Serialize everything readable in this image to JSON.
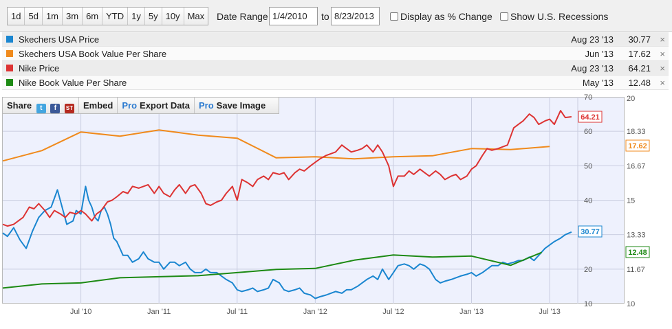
{
  "toolbar": {
    "ranges": [
      "1d",
      "5d",
      "1m",
      "3m",
      "6m",
      "YTD",
      "1y",
      "5y",
      "10y",
      "Max"
    ],
    "date_range_label": "Date Range:",
    "start_date": "1/4/2010",
    "to_label": "to",
    "end_date": "8/23/2013",
    "pct_change_label": "Display as % Change",
    "recessions_label": "Show U.S. Recessions"
  },
  "legend": [
    {
      "name": "Skechers USA Price",
      "date": "Aug 23 '13",
      "value": "30.77",
      "color": "#1a86d0"
    },
    {
      "name": "Skechers USA Book Value Per Share",
      "date": "Jun '13",
      "value": "17.62",
      "color": "#f08a1c"
    },
    {
      "name": "Nike Price",
      "date": "Aug 23 '13",
      "value": "64.21",
      "color": "#dd3333"
    },
    {
      "name": "Nike Book Value Per Share",
      "date": "May '13",
      "value": "12.48",
      "color": "#1d8a14"
    }
  ],
  "remove_glyph": "×",
  "share_bar": {
    "share": "Share",
    "twitter": "t",
    "facebook": "f",
    "stocktwits": "ST",
    "embed": "Embed",
    "pro": "Pro",
    "export": "Export Data",
    "save": "Save Image"
  },
  "chart_data": {
    "type": "line",
    "x_ticks": [
      "Jul '10",
      "Jan '11",
      "Jul '11",
      "Jan '12",
      "Jul '12",
      "Jan '13",
      "Jul '13"
    ],
    "y_left": {
      "range": [
        10,
        70
      ],
      "ticks": [
        "70",
        "60",
        "50",
        "40",
        "30",
        "20",
        "10"
      ]
    },
    "y_right": {
      "range": [
        10,
        20
      ],
      "ticks": [
        "20",
        "18.33",
        "16.67",
        "15",
        "13.33",
        "11.67",
        "10"
      ]
    },
    "grid": true,
    "series": [
      {
        "name": "Skechers USA Price",
        "axis": "left",
        "color": "#1a86d0",
        "end_label": "30.77",
        "points": [
          [
            2010.0,
            30.5
          ],
          [
            2010.03,
            29.5
          ],
          [
            2010.07,
            32
          ],
          [
            2010.11,
            28.5
          ],
          [
            2010.15,
            26
          ],
          [
            2010.19,
            31
          ],
          [
            2010.23,
            35
          ],
          [
            2010.27,
            37
          ],
          [
            2010.31,
            38
          ],
          [
            2010.35,
            43
          ],
          [
            2010.38,
            38
          ],
          [
            2010.41,
            33
          ],
          [
            2010.45,
            34
          ],
          [
            2010.47,
            37
          ],
          [
            2010.5,
            36
          ],
          [
            2010.53,
            44
          ],
          [
            2010.55,
            40
          ],
          [
            2010.57,
            38
          ],
          [
            2010.59,
            35
          ],
          [
            2010.61,
            34
          ],
          [
            2010.63,
            37
          ],
          [
            2010.65,
            38
          ],
          [
            2010.67,
            36
          ],
          [
            2010.69,
            33
          ],
          [
            2010.71,
            29
          ],
          [
            2010.73,
            28
          ],
          [
            2010.75,
            26
          ],
          [
            2010.77,
            24
          ],
          [
            2010.8,
            24
          ],
          [
            2010.83,
            22
          ],
          [
            2010.87,
            23
          ],
          [
            2010.9,
            25
          ],
          [
            2010.93,
            23
          ],
          [
            2010.97,
            22
          ],
          [
            2011.0,
            22
          ],
          [
            2011.03,
            20
          ],
          [
            2011.07,
            22
          ],
          [
            2011.1,
            22
          ],
          [
            2011.13,
            21
          ],
          [
            2011.17,
            22
          ],
          [
            2011.2,
            20
          ],
          [
            2011.23,
            19
          ],
          [
            2011.27,
            19
          ],
          [
            2011.3,
            20
          ],
          [
            2011.33,
            19
          ],
          [
            2011.37,
            19
          ],
          [
            2011.4,
            18
          ],
          [
            2011.43,
            17
          ],
          [
            2011.47,
            16
          ],
          [
            2011.5,
            14
          ],
          [
            2011.53,
            13.5
          ],
          [
            2011.57,
            14
          ],
          [
            2011.6,
            14.5
          ],
          [
            2011.63,
            13.5
          ],
          [
            2011.67,
            14
          ],
          [
            2011.7,
            14.5
          ],
          [
            2011.73,
            17
          ],
          [
            2011.77,
            16
          ],
          [
            2011.8,
            14
          ],
          [
            2011.83,
            13.5
          ],
          [
            2011.87,
            14
          ],
          [
            2011.9,
            14.5
          ],
          [
            2011.93,
            13
          ],
          [
            2011.97,
            12.5
          ],
          [
            2012.0,
            11.5
          ],
          [
            2012.03,
            12
          ],
          [
            2012.07,
            12.5
          ],
          [
            2012.1,
            13
          ],
          [
            2012.13,
            13.5
          ],
          [
            2012.17,
            13
          ],
          [
            2012.2,
            14
          ],
          [
            2012.23,
            14
          ],
          [
            2012.27,
            15
          ],
          [
            2012.3,
            16
          ],
          [
            2012.33,
            17
          ],
          [
            2012.37,
            18
          ],
          [
            2012.4,
            17
          ],
          [
            2012.43,
            20
          ],
          [
            2012.47,
            17
          ],
          [
            2012.5,
            19
          ],
          [
            2012.53,
            21
          ],
          [
            2012.57,
            21.5
          ],
          [
            2012.6,
            21
          ],
          [
            2012.63,
            20
          ],
          [
            2012.67,
            21.5
          ],
          [
            2012.7,
            21
          ],
          [
            2012.73,
            20
          ],
          [
            2012.77,
            17
          ],
          [
            2012.8,
            16
          ],
          [
            2012.83,
            16.5
          ],
          [
            2012.87,
            17
          ],
          [
            2012.9,
            17.5
          ],
          [
            2012.93,
            18
          ],
          [
            2012.97,
            18.5
          ],
          [
            2013.0,
            19
          ],
          [
            2013.03,
            18
          ],
          [
            2013.07,
            19
          ],
          [
            2013.1,
            20
          ],
          [
            2013.13,
            21
          ],
          [
            2013.17,
            21
          ],
          [
            2013.2,
            22
          ],
          [
            2013.23,
            21.5
          ],
          [
            2013.27,
            22
          ],
          [
            2013.3,
            22.5
          ],
          [
            2013.33,
            22.5
          ],
          [
            2013.37,
            23.5
          ],
          [
            2013.4,
            22.5
          ],
          [
            2013.43,
            24
          ],
          [
            2013.47,
            26
          ],
          [
            2013.5,
            27
          ],
          [
            2013.53,
            28
          ],
          [
            2013.57,
            29
          ],
          [
            2013.6,
            30
          ],
          [
            2013.64,
            30.77
          ]
        ]
      },
      {
        "name": "Skechers USA Book Value Per Share",
        "axis": "right",
        "color": "#f08a1c",
        "end_label": "17.62",
        "points": [
          [
            2010.0,
            16.9
          ],
          [
            2010.25,
            17.4
          ],
          [
            2010.5,
            18.3
          ],
          [
            2010.75,
            18.1
          ],
          [
            2011.0,
            18.4
          ],
          [
            2011.25,
            18.15
          ],
          [
            2011.5,
            18.0
          ],
          [
            2011.75,
            17.05
          ],
          [
            2012.0,
            17.1
          ],
          [
            2012.25,
            17.0
          ],
          [
            2012.5,
            17.1
          ],
          [
            2012.75,
            17.15
          ],
          [
            2013.0,
            17.5
          ],
          [
            2013.25,
            17.45
          ],
          [
            2013.5,
            17.6
          ]
        ]
      },
      {
        "name": "Nike Price",
        "axis": "left",
        "color": "#dd3333",
        "end_label": "64.21",
        "points": [
          [
            2010.0,
            33
          ],
          [
            2010.03,
            32.5
          ],
          [
            2010.07,
            33
          ],
          [
            2010.1,
            34
          ],
          [
            2010.13,
            35
          ],
          [
            2010.17,
            38
          ],
          [
            2010.2,
            37.5
          ],
          [
            2010.23,
            39
          ],
          [
            2010.27,
            37
          ],
          [
            2010.3,
            35
          ],
          [
            2010.33,
            37
          ],
          [
            2010.37,
            36
          ],
          [
            2010.4,
            35
          ],
          [
            2010.43,
            36.5
          ],
          [
            2010.47,
            36
          ],
          [
            2010.5,
            37
          ],
          [
            2010.53,
            36
          ],
          [
            2010.57,
            34
          ],
          [
            2010.6,
            36
          ],
          [
            2010.63,
            37
          ],
          [
            2010.67,
            39.5
          ],
          [
            2010.7,
            40
          ],
          [
            2010.73,
            41
          ],
          [
            2010.77,
            42.5
          ],
          [
            2010.8,
            42
          ],
          [
            2010.83,
            44
          ],
          [
            2010.87,
            43.5
          ],
          [
            2010.9,
            44
          ],
          [
            2010.93,
            44.5
          ],
          [
            2010.97,
            42
          ],
          [
            2011.0,
            44
          ],
          [
            2011.03,
            42
          ],
          [
            2011.07,
            41
          ],
          [
            2011.1,
            43
          ],
          [
            2011.13,
            44.5
          ],
          [
            2011.17,
            42
          ],
          [
            2011.2,
            44
          ],
          [
            2011.23,
            44.5
          ],
          [
            2011.27,
            42
          ],
          [
            2011.3,
            39
          ],
          [
            2011.33,
            38.5
          ],
          [
            2011.37,
            39.5
          ],
          [
            2011.4,
            40
          ],
          [
            2011.43,
            42
          ],
          [
            2011.47,
            44
          ],
          [
            2011.5,
            40
          ],
          [
            2011.53,
            46
          ],
          [
            2011.57,
            45
          ],
          [
            2011.6,
            44
          ],
          [
            2011.63,
            46
          ],
          [
            2011.67,
            47
          ],
          [
            2011.7,
            46
          ],
          [
            2011.73,
            48
          ],
          [
            2011.77,
            47.5
          ],
          [
            2011.8,
            48
          ],
          [
            2011.83,
            46
          ],
          [
            2011.87,
            48
          ],
          [
            2011.9,
            49
          ],
          [
            2011.93,
            48.5
          ],
          [
            2011.97,
            50
          ],
          [
            2012.0,
            51
          ],
          [
            2012.03,
            52
          ],
          [
            2012.07,
            53
          ],
          [
            2012.1,
            53.5
          ],
          [
            2012.13,
            54
          ],
          [
            2012.17,
            56
          ],
          [
            2012.2,
            55
          ],
          [
            2012.23,
            54
          ],
          [
            2012.27,
            54.5
          ],
          [
            2012.3,
            55
          ],
          [
            2012.33,
            56
          ],
          [
            2012.37,
            54
          ],
          [
            2012.4,
            56
          ],
          [
            2012.43,
            54
          ],
          [
            2012.47,
            50
          ],
          [
            2012.5,
            44
          ],
          [
            2012.53,
            47
          ],
          [
            2012.57,
            47
          ],
          [
            2012.6,
            48.5
          ],
          [
            2012.63,
            47.5
          ],
          [
            2012.67,
            49
          ],
          [
            2012.7,
            48
          ],
          [
            2012.73,
            47
          ],
          [
            2012.77,
            48.5
          ],
          [
            2012.8,
            47.5
          ],
          [
            2012.83,
            46
          ],
          [
            2012.87,
            47
          ],
          [
            2012.9,
            47.5
          ],
          [
            2012.93,
            46
          ],
          [
            2012.97,
            47
          ],
          [
            2013.0,
            49
          ],
          [
            2013.03,
            50
          ],
          [
            2013.07,
            53
          ],
          [
            2013.1,
            55
          ],
          [
            2013.13,
            54.5
          ],
          [
            2013.17,
            55
          ],
          [
            2013.2,
            55.5
          ],
          [
            2013.23,
            56
          ],
          [
            2013.27,
            61
          ],
          [
            2013.3,
            62
          ],
          [
            2013.33,
            63
          ],
          [
            2013.37,
            65
          ],
          [
            2013.4,
            64
          ],
          [
            2013.43,
            62
          ],
          [
            2013.47,
            63
          ],
          [
            2013.5,
            63.5
          ],
          [
            2013.53,
            62
          ],
          [
            2013.57,
            66
          ],
          [
            2013.6,
            64
          ],
          [
            2013.64,
            64.21
          ]
        ]
      },
      {
        "name": "Nike Book Value Per Share",
        "axis": "right",
        "color": "#1d8a14",
        "end_label": "12.48",
        "points": [
          [
            2010.0,
            10.75
          ],
          [
            2010.25,
            10.95
          ],
          [
            2010.5,
            11.0
          ],
          [
            2010.75,
            11.25
          ],
          [
            2011.0,
            11.3
          ],
          [
            2011.25,
            11.35
          ],
          [
            2011.5,
            11.5
          ],
          [
            2011.75,
            11.65
          ],
          [
            2012.0,
            11.7
          ],
          [
            2012.25,
            12.1
          ],
          [
            2012.5,
            12.35
          ],
          [
            2012.75,
            12.25
          ],
          [
            2013.0,
            12.3
          ],
          [
            2013.25,
            11.85
          ],
          [
            2013.45,
            12.48
          ]
        ]
      }
    ]
  }
}
